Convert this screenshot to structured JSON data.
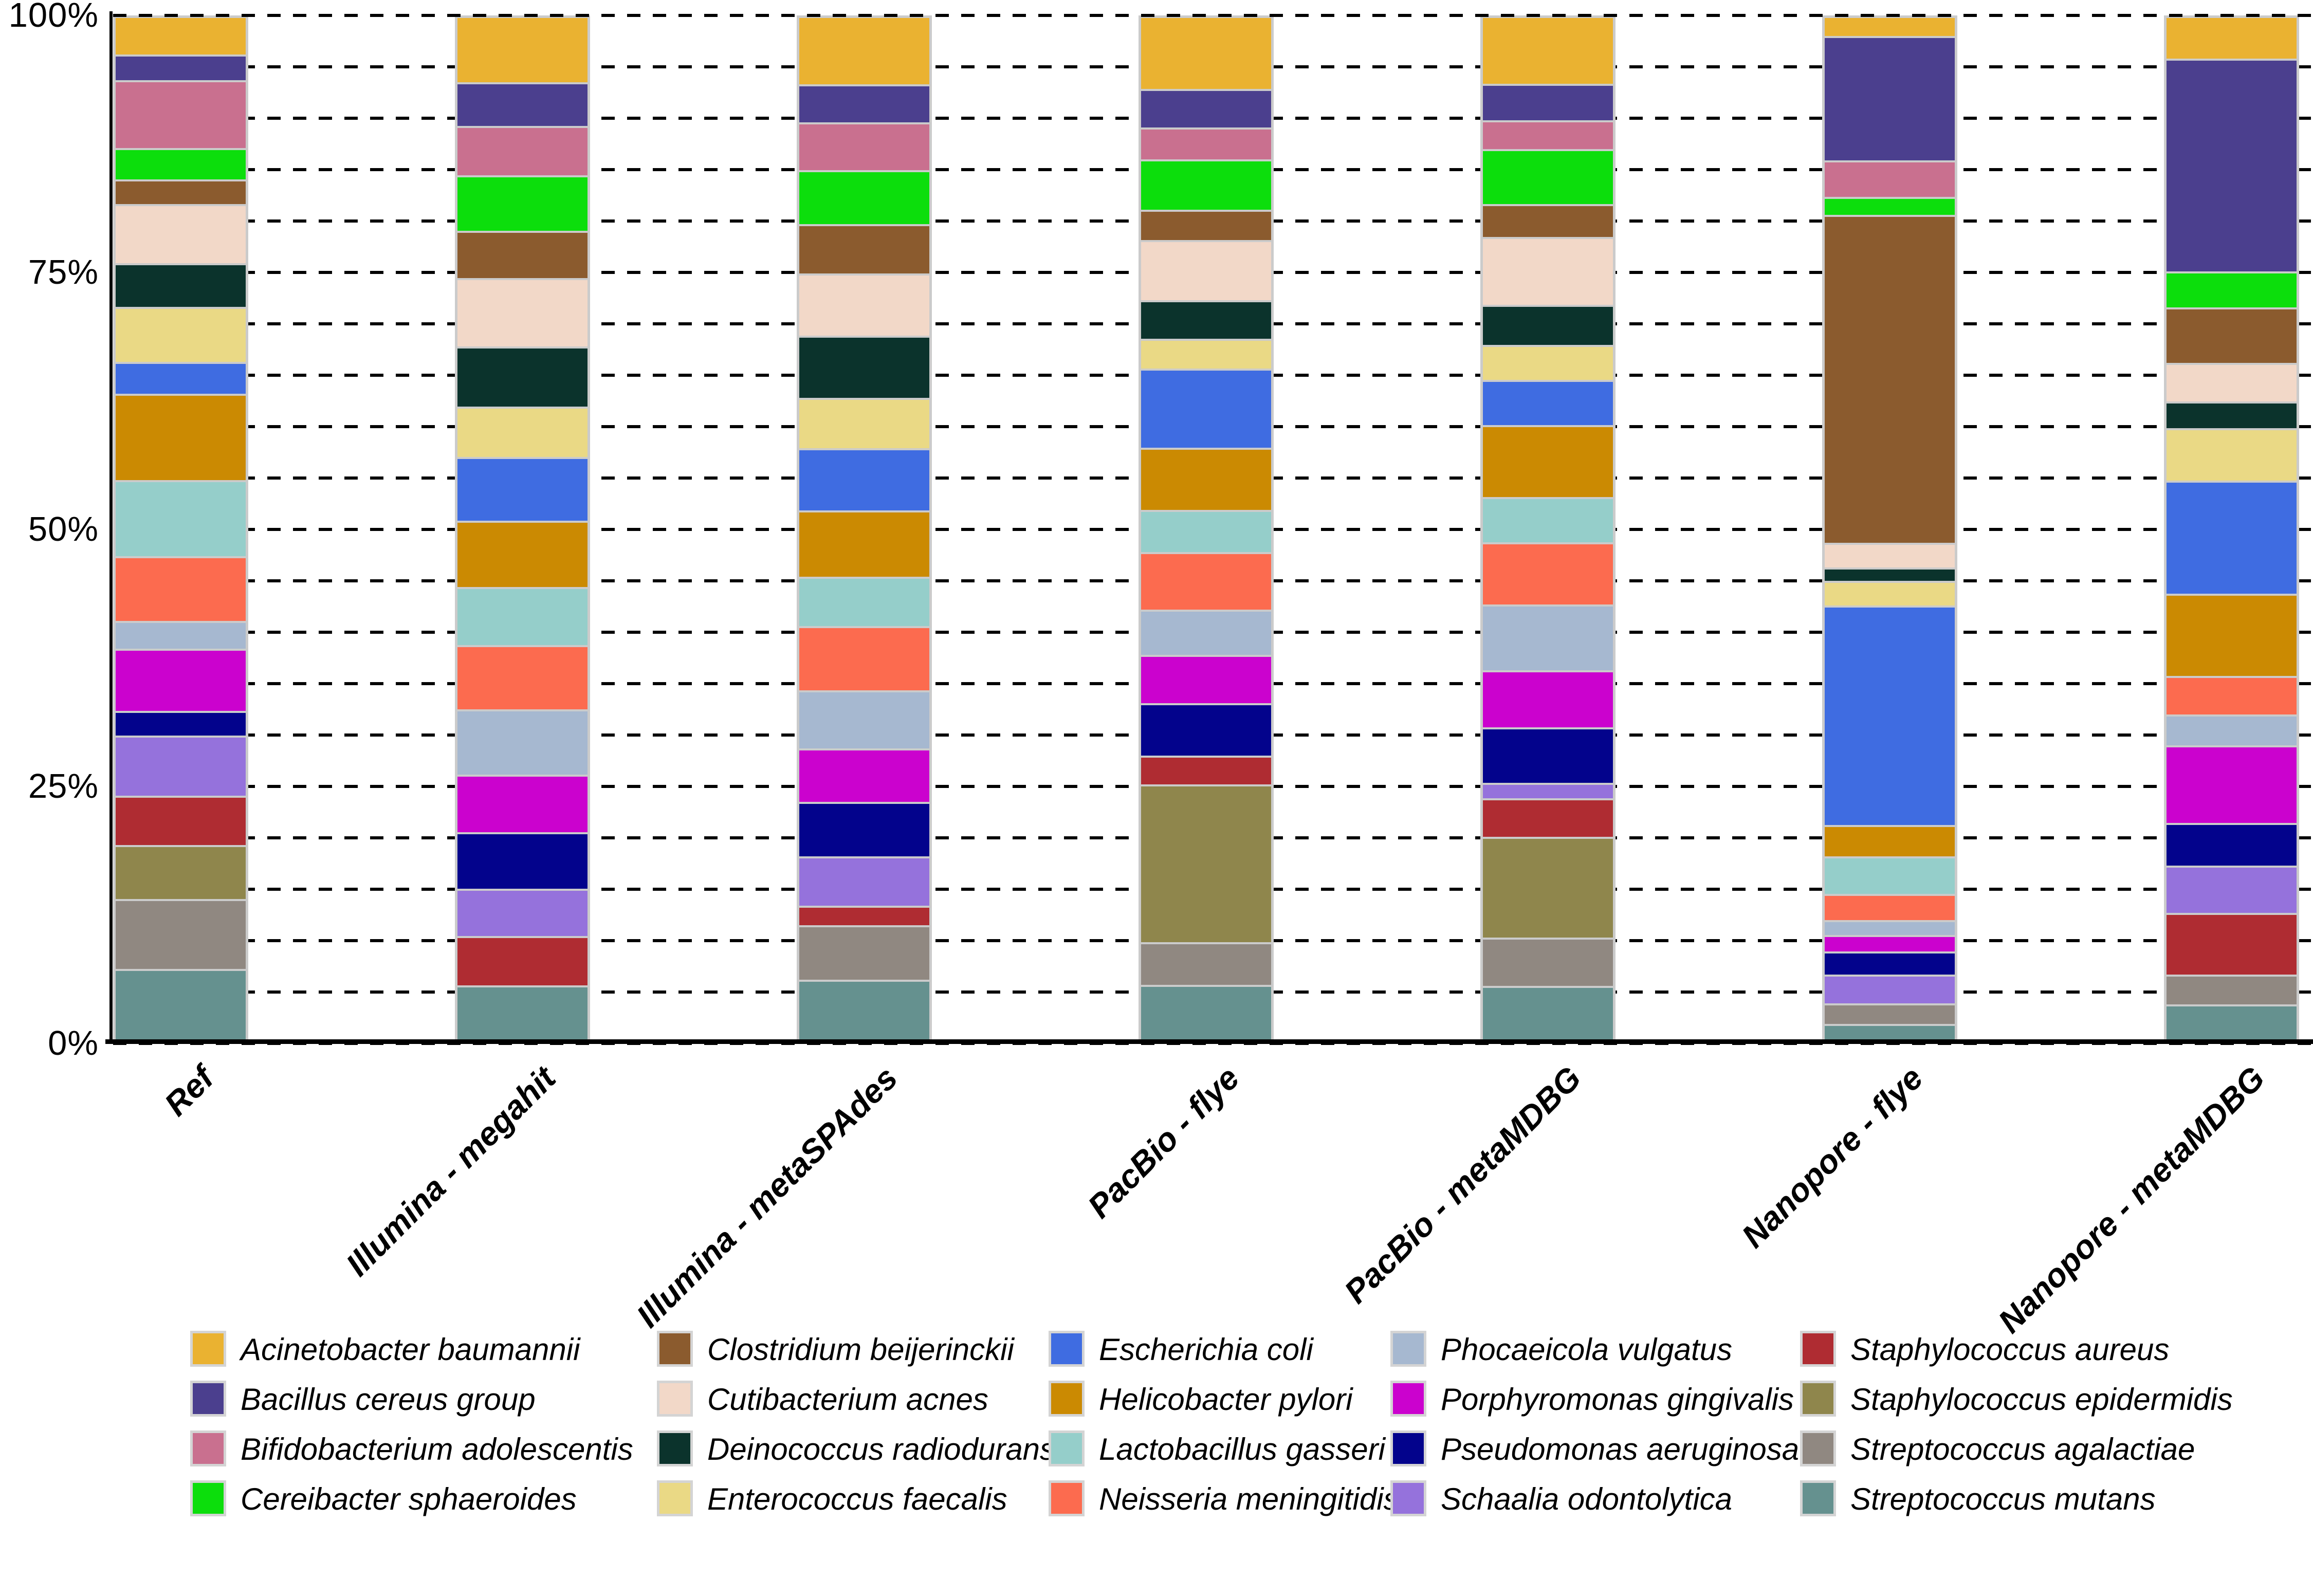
{
  "chart_data": {
    "type": "bar",
    "subtype": "stacked-percent",
    "title": "",
    "xlabel": "",
    "ylabel": "",
    "ylim": [
      0,
      100
    ],
    "grid": "dashed horizontal every 5%",
    "legend_position": "bottom",
    "legend_columns": 5,
    "y_ticks": [
      "100%",
      "75%",
      "50%",
      "25%",
      "0%"
    ],
    "y_tick_values": [
      100,
      75,
      50,
      25,
      0
    ],
    "categories": [
      "Ref",
      "Illumina - megahit",
      "Illumina - metaSPAdes",
      "PacBio - flye",
      "PacBio - metaMDBG",
      "Nanopore - flye",
      "Nanopore - metaMDBG"
    ],
    "series": [
      {
        "name": "Acinetobacter baumannii",
        "color": "#EAB231",
        "values": [
          3.7,
          6.5,
          6.7,
          7.2,
          6.7,
          1.8,
          4.1
        ]
      },
      {
        "name": "Bacillus cereus group",
        "color": "#4B3F8E",
        "values": [
          2.4,
          4.2,
          3.7,
          3.7,
          3.5,
          12.4,
          21.3
        ]
      },
      {
        "name": "Bifidobacterium adolescentis",
        "color": "#C9708F",
        "values": [
          6.7,
          4.8,
          4.6,
          3.0,
          2.7,
          3.5,
          0
        ]
      },
      {
        "name": "Cereibacter sphaeroides",
        "color": "#0CDE0C",
        "values": [
          3.0,
          5.4,
          5.3,
          4.9,
          5.4,
          1.6,
          3.4
        ]
      },
      {
        "name": "Clostridium beijerinckii",
        "color": "#8B5B2E",
        "values": [
          2.3,
          4.6,
          4.8,
          2.9,
          3.1,
          33.0,
          5.4
        ]
      },
      {
        "name": "Cutibacterium acnes",
        "color": "#F2D8C8",
        "values": [
          5.8,
          6.7,
          6.1,
          5.9,
          6.7,
          2.3,
          3.7
        ]
      },
      {
        "name": "Deinococcus radiodurans",
        "color": "#0B332C",
        "values": [
          4.2,
          5.9,
          6.1,
          3.7,
          3.9,
          1.1,
          2.5
        ]
      },
      {
        "name": "Enterococcus faecalis",
        "color": "#EAD985",
        "values": [
          5.4,
          4.9,
          4.9,
          2.8,
          3.3,
          2.3,
          5.1
        ]
      },
      {
        "name": "Escherichia coli",
        "color": "#3F6CE1",
        "values": [
          3.0,
          6.2,
          6.1,
          7.8,
          4.4,
          22.0,
          11.2
        ]
      },
      {
        "name": "Helicobacter pylori",
        "color": "#CB8A02",
        "values": [
          8.6,
          6.5,
          6.5,
          6.1,
          7.1,
          3.0,
          8.1
        ]
      },
      {
        "name": "Lactobacillus gasseri",
        "color": "#95CECA",
        "values": [
          7.5,
          5.7,
          4.8,
          4.1,
          4.4,
          3.6,
          0
        ]
      },
      {
        "name": "Neisseria meningitidis",
        "color": "#FC6B4F",
        "values": [
          6.4,
          6.3,
          6.3,
          5.6,
          6.1,
          2.4,
          3.7
        ]
      },
      {
        "name": "Phocaeicola vulgatus",
        "color": "#A6B8D0",
        "values": [
          2.6,
          6.4,
          5.7,
          4.4,
          6.5,
          1.3,
          2.9
        ]
      },
      {
        "name": "Porphyromonas gingivalis",
        "color": "#CB02CE",
        "values": [
          6.1,
          5.6,
          5.2,
          4.7,
          5.6,
          1.5,
          7.6
        ]
      },
      {
        "name": "Pseudomonas aeruginosa",
        "color": "#03038C",
        "values": [
          2.3,
          5.5,
          5.3,
          5.1,
          5.4,
          2.1,
          4.1
        ]
      },
      {
        "name": "Schaalia odontolytica",
        "color": "#9572DC",
        "values": [
          5.9,
          4.6,
          4.8,
          0,
          1.4,
          2.7,
          4.6
        ]
      },
      {
        "name": "Staphylococcus aureus",
        "color": "#AF2C32",
        "values": [
          4.8,
          4.8,
          1.8,
          2.7,
          3.7,
          0,
          6.0
        ]
      },
      {
        "name": "Staphylococcus epidermidis",
        "color": "#8F864C",
        "values": [
          5.3,
          0,
          0,
          15.8,
          10.0,
          0,
          0
        ]
      },
      {
        "name": "Streptococcus agalactiae",
        "color": "#908881",
        "values": [
          6.9,
          0,
          5.3,
          4.1,
          4.7,
          1.9,
          2.8
        ]
      },
      {
        "name": "Streptococcus mutans",
        "color": "#65918F",
        "values": [
          7.1,
          5.4,
          6.0,
          5.5,
          5.4,
          1.5,
          3.5
        ]
      }
    ],
    "colors": {
      "grid": "#000000",
      "axis": "#000000",
      "bar_border": "#CBCBCB",
      "legend_swatch_border": "#D4D4D4",
      "background": "#FFFFFF"
    }
  }
}
